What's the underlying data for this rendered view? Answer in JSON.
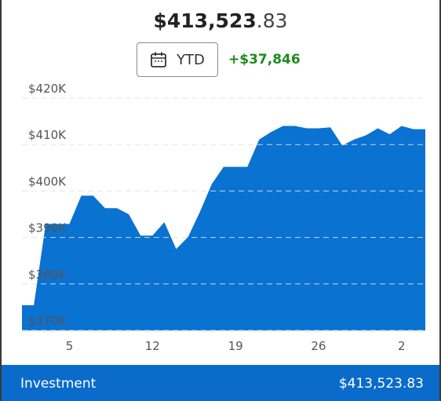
{
  "header": {
    "value_main": "$413,523",
    "value_cents": ".83",
    "period": "YTD",
    "change": "+$37,846"
  },
  "chart_data": {
    "type": "area",
    "color": "#0a72d1",
    "categories": [
      null,
      null,
      null,
      null,
      "5",
      null,
      null,
      null,
      null,
      null,
      null,
      "12",
      null,
      null,
      null,
      null,
      null,
      null,
      "19",
      null,
      null,
      null,
      null,
      null,
      null,
      "26",
      null,
      null,
      null,
      null,
      null,
      null,
      "2",
      null,
      null
    ],
    "values": [
      375400,
      375400,
      392900,
      392900,
      392900,
      399000,
      399000,
      396300,
      396300,
      395000,
      390400,
      390400,
      393300,
      387500,
      390100,
      395500,
      401500,
      405200,
      405200,
      405200,
      411100,
      412700,
      414000,
      414000,
      413500,
      413500,
      413700,
      409800,
      411100,
      412000,
      413500,
      412200,
      414000,
      413300,
      413300
    ],
    "ylim": [
      370000,
      420000
    ],
    "yticks": [
      {
        "value": 370000,
        "label": "$370K"
      },
      {
        "value": 380000,
        "label": "$380K"
      },
      {
        "value": 390000,
        "label": "$390K"
      },
      {
        "value": 400000,
        "label": "$400K"
      },
      {
        "value": 410000,
        "label": "$410K"
      },
      {
        "value": 420000,
        "label": "$420K"
      }
    ],
    "grid": true
  },
  "footer": {
    "label": "Investment",
    "value": "$413,523.83"
  }
}
